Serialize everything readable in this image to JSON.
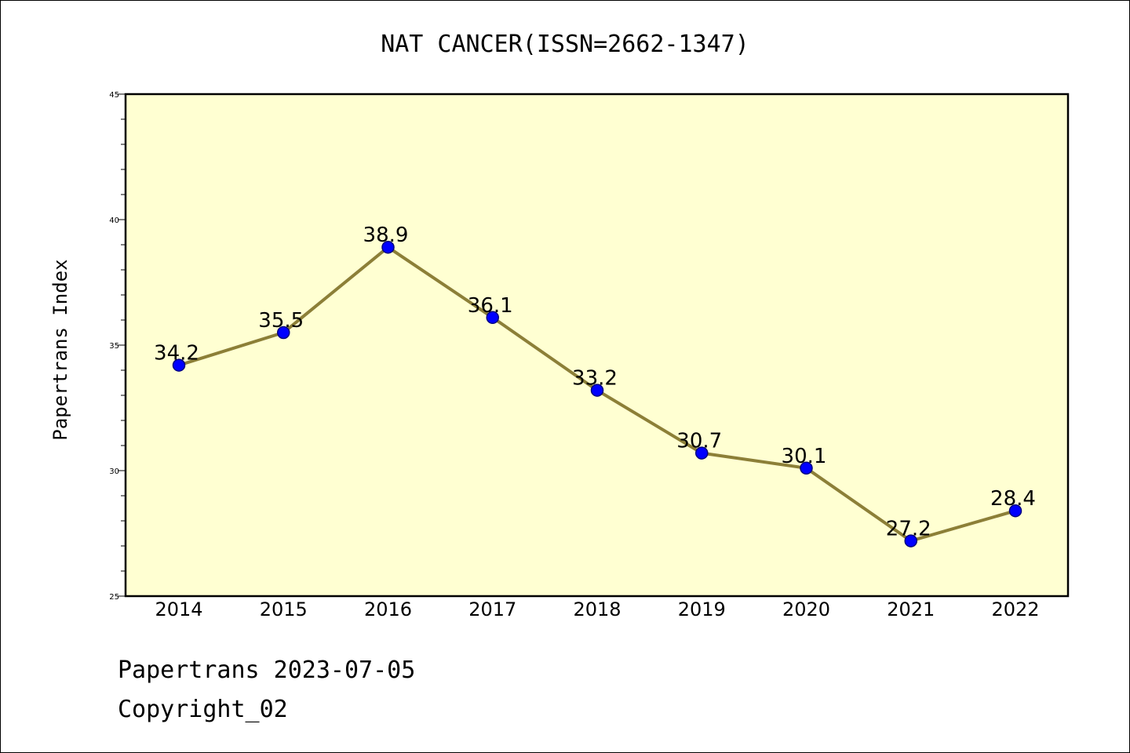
{
  "chart_data": {
    "type": "line",
    "title": "NAT CANCER(ISSN=2662-1347)",
    "xlabel": "",
    "ylabel": "Papertrans Index",
    "x": [
      "2014",
      "2015",
      "2016",
      "2017",
      "2018",
      "2019",
      "2020",
      "2021",
      "2022"
    ],
    "values": [
      34.2,
      35.5,
      38.9,
      36.1,
      33.2,
      30.7,
      30.1,
      27.2,
      28.4
    ],
    "data_labels": [
      "34.2",
      "35.5",
      "38.9",
      "36.1",
      "33.2",
      "30.7",
      "30.1",
      "27.2",
      "28.4"
    ],
    "ylim": [
      25,
      45
    ],
    "yticks": [
      "25",
      "30",
      "35",
      "40",
      "45"
    ],
    "grid": false,
    "colors": {
      "plot_background": "#ffffd2",
      "line": "#8c7f37",
      "marker_fill": "#0000ff",
      "marker_edge": "#000080"
    }
  },
  "footer": {
    "line1": "Papertrans 2023-07-05",
    "line2": "Copyright_02"
  }
}
